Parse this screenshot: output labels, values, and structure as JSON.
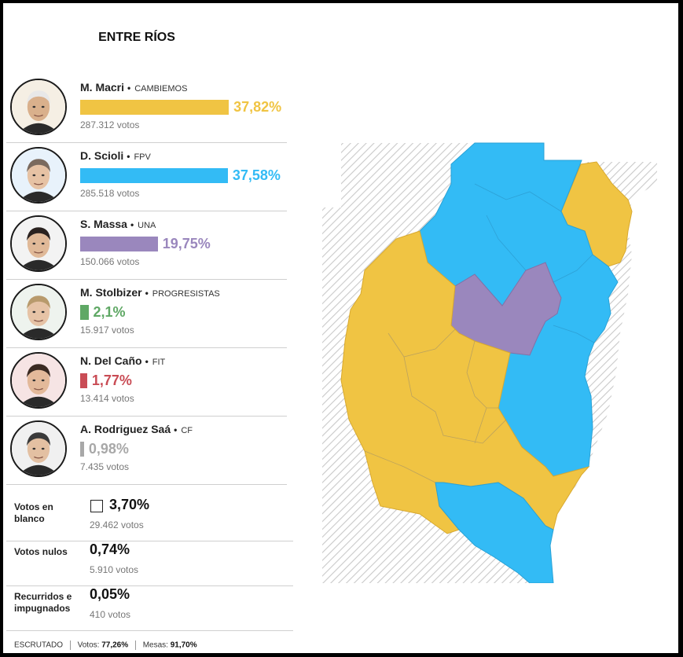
{
  "title": "ENTRE RÍOS",
  "candidates": [
    {
      "name": "M. Macri",
      "party": "CAMBIEMOS",
      "pct": "37,82%",
      "value": 37.82,
      "votes": "287.312 votos",
      "color": "#f0c443",
      "skin": "#d9b08c",
      "hair": "#e8e8e8",
      "bg": "#f5efe4"
    },
    {
      "name": "D. Scioli",
      "party": "FPV",
      "pct": "37,58%",
      "value": 37.58,
      "votes": "285.518 votos",
      "color": "#33bbf5",
      "skin": "#e6c2a4",
      "hair": "#7a6a5e",
      "bg": "#e8f2fb"
    },
    {
      "name": "S. Massa",
      "party": "UNA",
      "pct": "19,75%",
      "value": 19.75,
      "votes": "150.066 votos",
      "color": "#9a87bd",
      "skin": "#e0b998",
      "hair": "#2a2220",
      "bg": "#f3f3f3"
    },
    {
      "name": "M. Stolbizer",
      "party": "PROGRESISTAS",
      "pct": "2,1%",
      "value": 2.1,
      "votes": "15.917 votos",
      "color": "#5fa865",
      "skin": "#e6c3a6",
      "hair": "#b89a6c",
      "bg": "#eef3ee"
    },
    {
      "name": "N. Del Caño",
      "party": "FIT",
      "pct": "1,77%",
      "value": 1.77,
      "votes": "13.414 votos",
      "color": "#c94c55",
      "skin": "#e3b99a",
      "hair": "#3a2a22",
      "bg": "#f6e4e4"
    },
    {
      "name": "A. Rodriguez Saá",
      "party": "CF",
      "pct": "0,98%",
      "value": 0.98,
      "votes": "7.435 votos",
      "color": "#a8a8a8",
      "skin": "#e3c0a2",
      "hair": "#3a3a3a",
      "bg": "#f0f0f0"
    }
  ],
  "others": [
    {
      "label": "Votos en blanco",
      "pct": "3,70%",
      "votes": "29.462 votos",
      "box": true
    },
    {
      "label": "Votos nulos",
      "pct": "0,74%",
      "votes": "5.910 votos",
      "box": false
    },
    {
      "label": "Recurridos e impugnados",
      "pct": "0,05%",
      "votes": "410 votos",
      "box": false
    }
  ],
  "footer": {
    "scrutinized_label": "ESCRUTADO",
    "votes_label": "Votos:",
    "votes_value": "77,26%",
    "tables_label": "Mesas:",
    "tables_value": "91,70%"
  },
  "chart_data": {
    "type": "bar",
    "title": "ENTRE RÍOS",
    "categories": [
      "M. Macri",
      "D. Scioli",
      "S. Massa",
      "M. Stolbizer",
      "N. Del Caño",
      "A. Rodriguez Saá"
    ],
    "values": [
      37.82,
      37.58,
      19.75,
      2.1,
      1.77,
      0.98
    ],
    "votes": [
      287312,
      285518,
      150066,
      15917,
      13414,
      7435
    ],
    "ylim": [
      0,
      100
    ]
  }
}
